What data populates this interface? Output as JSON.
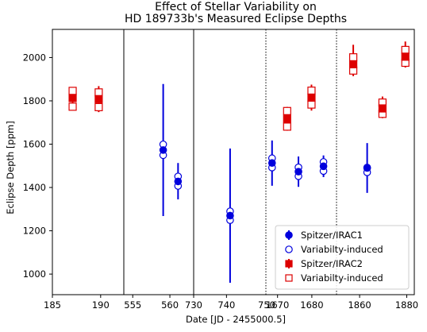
{
  "chart_data": {
    "type": "scatter",
    "title": [
      "Effect of Stellar Variability on",
      "HD 189733b's Measured Eclipse Depths"
    ],
    "xlabel": "Date [JD - 2455000.5]",
    "ylabel": "Eclipse Depth [ppm]",
    "ylim": [
      905,
      2130
    ],
    "yticks": [
      1000,
      1200,
      1400,
      1600,
      1800,
      2000
    ],
    "legend_location": "lower right",
    "colors": {
      "irac1": "#0000dd",
      "irac2": "#dd0000"
    },
    "panels": [
      {
        "xlim": [
          185,
          192.4
        ],
        "xticks": [
          185,
          190
        ],
        "divider_after": "solid"
      },
      {
        "xlim": [
          553.8,
          563.2
        ],
        "xticks": [
          555,
          560
        ],
        "divider_after": "solid"
      },
      {
        "xlim": [
          730,
          752
        ],
        "xticks": [
          730,
          740
        ],
        "divider_after": "dotted"
      },
      {
        "xlim": [
          1666.6,
          1687.2
        ],
        "xticks": [
          1670,
          1680
        ],
        "xtick_label_extra": "750",
        "divider_after": "dotted"
      },
      {
        "xlim": [
          1850.2,
          1883.2
        ],
        "xticks": [
          1860,
          1880
        ],
        "divider_after": null
      }
    ],
    "series": [
      {
        "name": "Spitzer/IRAC1",
        "marker": "filled-circle",
        "color": "#0000dd",
        "points": [
          {
            "panel": 1,
            "x": 559.1,
            "y": 1573,
            "yerr_low": 305,
            "yerr_high": 305
          },
          {
            "panel": 1,
            "x": 561.1,
            "y": 1428,
            "yerr_low": 83,
            "yerr_high": 85
          },
          {
            "panel": 2,
            "x": 741.1,
            "y": 1270,
            "yerr_low": 310,
            "yerr_high": 310
          },
          {
            "panel": 3,
            "x": 1668.4,
            "y": 1513,
            "yerr_low": 105,
            "yerr_high": 104
          },
          {
            "panel": 3,
            "x": 1676.1,
            "y": 1473,
            "yerr_low": 70,
            "yerr_high": 70
          },
          {
            "panel": 3,
            "x": 1683.4,
            "y": 1498,
            "yerr_low": 50,
            "yerr_high": 50
          },
          {
            "panel": 4,
            "x": 1863.2,
            "y": 1490,
            "yerr_low": 115,
            "yerr_high": 115
          }
        ]
      },
      {
        "name": "Variabilty-induced",
        "marker": "open-circle",
        "color": "#0000dd",
        "points": [
          {
            "panel": 1,
            "x": 559.1,
            "y": 1599
          },
          {
            "panel": 1,
            "x": 559.1,
            "y": 1549
          },
          {
            "panel": 1,
            "x": 561.1,
            "y": 1451
          },
          {
            "panel": 1,
            "x": 561.1,
            "y": 1407
          },
          {
            "panel": 2,
            "x": 741.1,
            "y": 1290
          },
          {
            "panel": 2,
            "x": 741.1,
            "y": 1249
          },
          {
            "panel": 3,
            "x": 1668.4,
            "y": 1535
          },
          {
            "panel": 3,
            "x": 1668.4,
            "y": 1492
          },
          {
            "panel": 3,
            "x": 1676.1,
            "y": 1493
          },
          {
            "panel": 3,
            "x": 1676.1,
            "y": 1452
          },
          {
            "panel": 3,
            "x": 1683.4,
            "y": 1518
          },
          {
            "panel": 3,
            "x": 1683.4,
            "y": 1476
          },
          {
            "panel": 4,
            "x": 1863.2,
            "y": 1492
          },
          {
            "panel": 4,
            "x": 1863.2,
            "y": 1470
          }
        ]
      },
      {
        "name": "Spitzer/IRAC2",
        "marker": "filled-square",
        "color": "#dd0000",
        "points": [
          {
            "panel": 0,
            "x": 187.1,
            "y": 1813,
            "yerr_low": 50,
            "yerr_high": 45
          },
          {
            "panel": 0,
            "x": 189.8,
            "y": 1808,
            "yerr_low": 60,
            "yerr_high": 60
          },
          {
            "panel": 3,
            "x": 1672.8,
            "y": 1717,
            "yerr_low": 55,
            "yerr_high": 55
          },
          {
            "panel": 3,
            "x": 1679.9,
            "y": 1815,
            "yerr_low": 60,
            "yerr_high": 60
          },
          {
            "panel": 4,
            "x": 1857.3,
            "y": 1969,
            "yerr_low": 55,
            "yerr_high": 90
          },
          {
            "panel": 4,
            "x": 1869.7,
            "y": 1765,
            "yerr_low": 45,
            "yerr_high": 55
          },
          {
            "panel": 4,
            "x": 1879.4,
            "y": 2004,
            "yerr_low": 50,
            "yerr_high": 70
          }
        ]
      },
      {
        "name": "Variabilty-induced",
        "marker": "open-square",
        "color": "#dd0000",
        "points": [
          {
            "panel": 0,
            "x": 187.1,
            "y": 1846
          },
          {
            "panel": 0,
            "x": 187.1,
            "y": 1773
          },
          {
            "panel": 0,
            "x": 189.8,
            "y": 1839
          },
          {
            "panel": 0,
            "x": 189.8,
            "y": 1771
          },
          {
            "panel": 3,
            "x": 1672.8,
            "y": 1753
          },
          {
            "panel": 3,
            "x": 1672.8,
            "y": 1681
          },
          {
            "panel": 3,
            "x": 1679.9,
            "y": 1847
          },
          {
            "panel": 3,
            "x": 1679.9,
            "y": 1783
          },
          {
            "panel": 4,
            "x": 1857.3,
            "y": 2001
          },
          {
            "panel": 4,
            "x": 1857.3,
            "y": 1940
          },
          {
            "panel": 4,
            "x": 1869.7,
            "y": 1792
          },
          {
            "panel": 4,
            "x": 1869.7,
            "y": 1740
          },
          {
            "panel": 4,
            "x": 1879.4,
            "y": 2035
          },
          {
            "panel": 4,
            "x": 1879.4,
            "y": 1976
          }
        ]
      }
    ],
    "legend": [
      {
        "label": "Spitzer/IRAC1",
        "marker": "filled-circle",
        "color": "#0000dd"
      },
      {
        "label": "Variabilty-induced",
        "marker": "open-circle",
        "color": "#0000dd"
      },
      {
        "label": "Spitzer/IRAC2",
        "marker": "filled-square",
        "color": "#dd0000"
      },
      {
        "label": "Variabilty-induced",
        "marker": "open-square",
        "color": "#dd0000"
      }
    ]
  }
}
